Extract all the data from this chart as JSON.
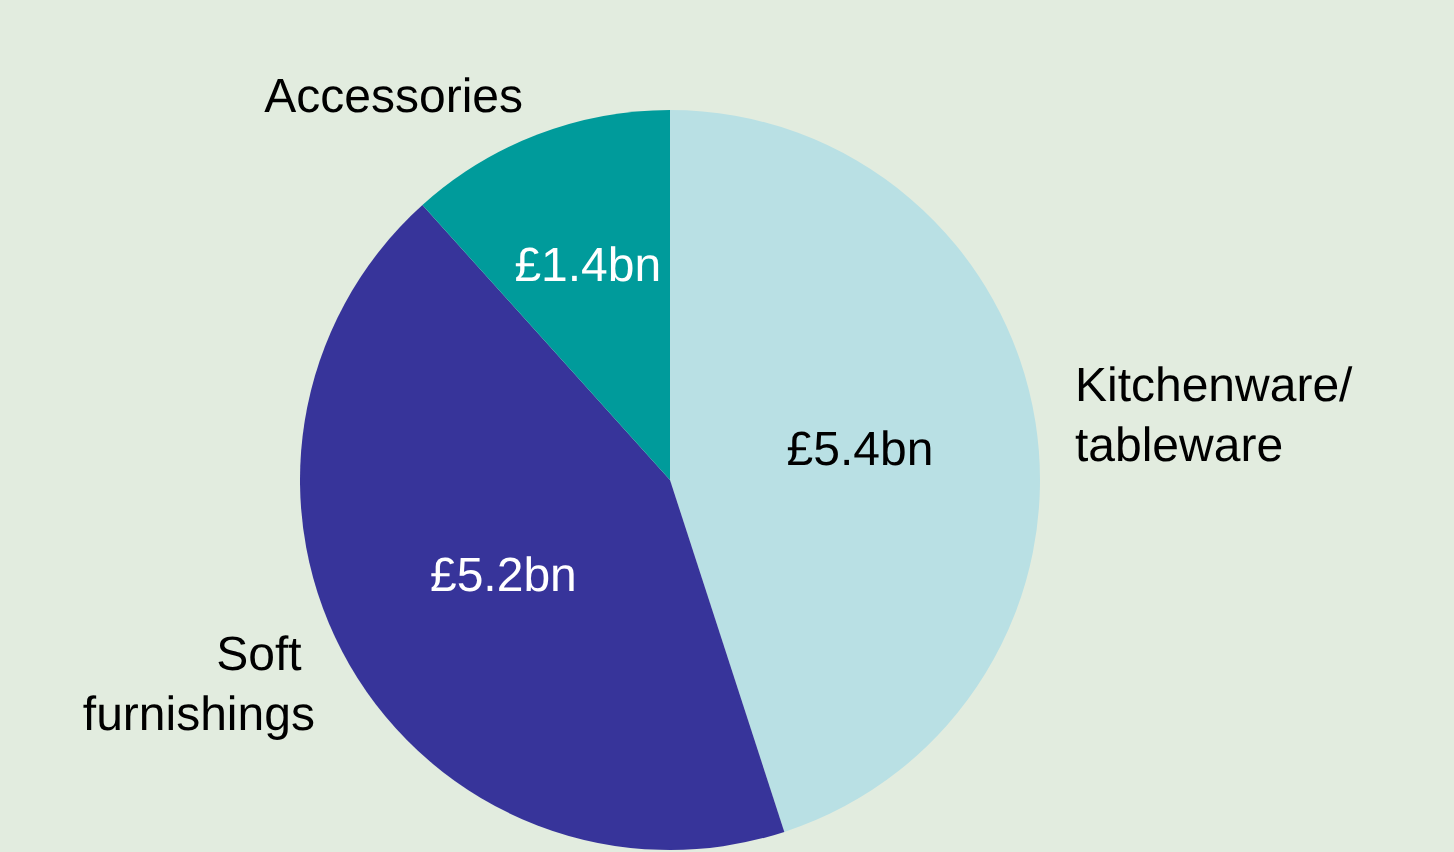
{
  "chart_data": {
    "type": "pie",
    "categories": [
      "Kitchenware/\ntableware",
      "Soft furnishings",
      "Accessories"
    ],
    "values": [
      5.4,
      5.2,
      1.4
    ],
    "colors": [
      "#b9e0e4",
      "#37349a",
      "#009b9b"
    ],
    "value_labels": [
      "£5.4bn",
      "£5.2bn",
      "£1.4bn"
    ],
    "legend": false
  }
}
